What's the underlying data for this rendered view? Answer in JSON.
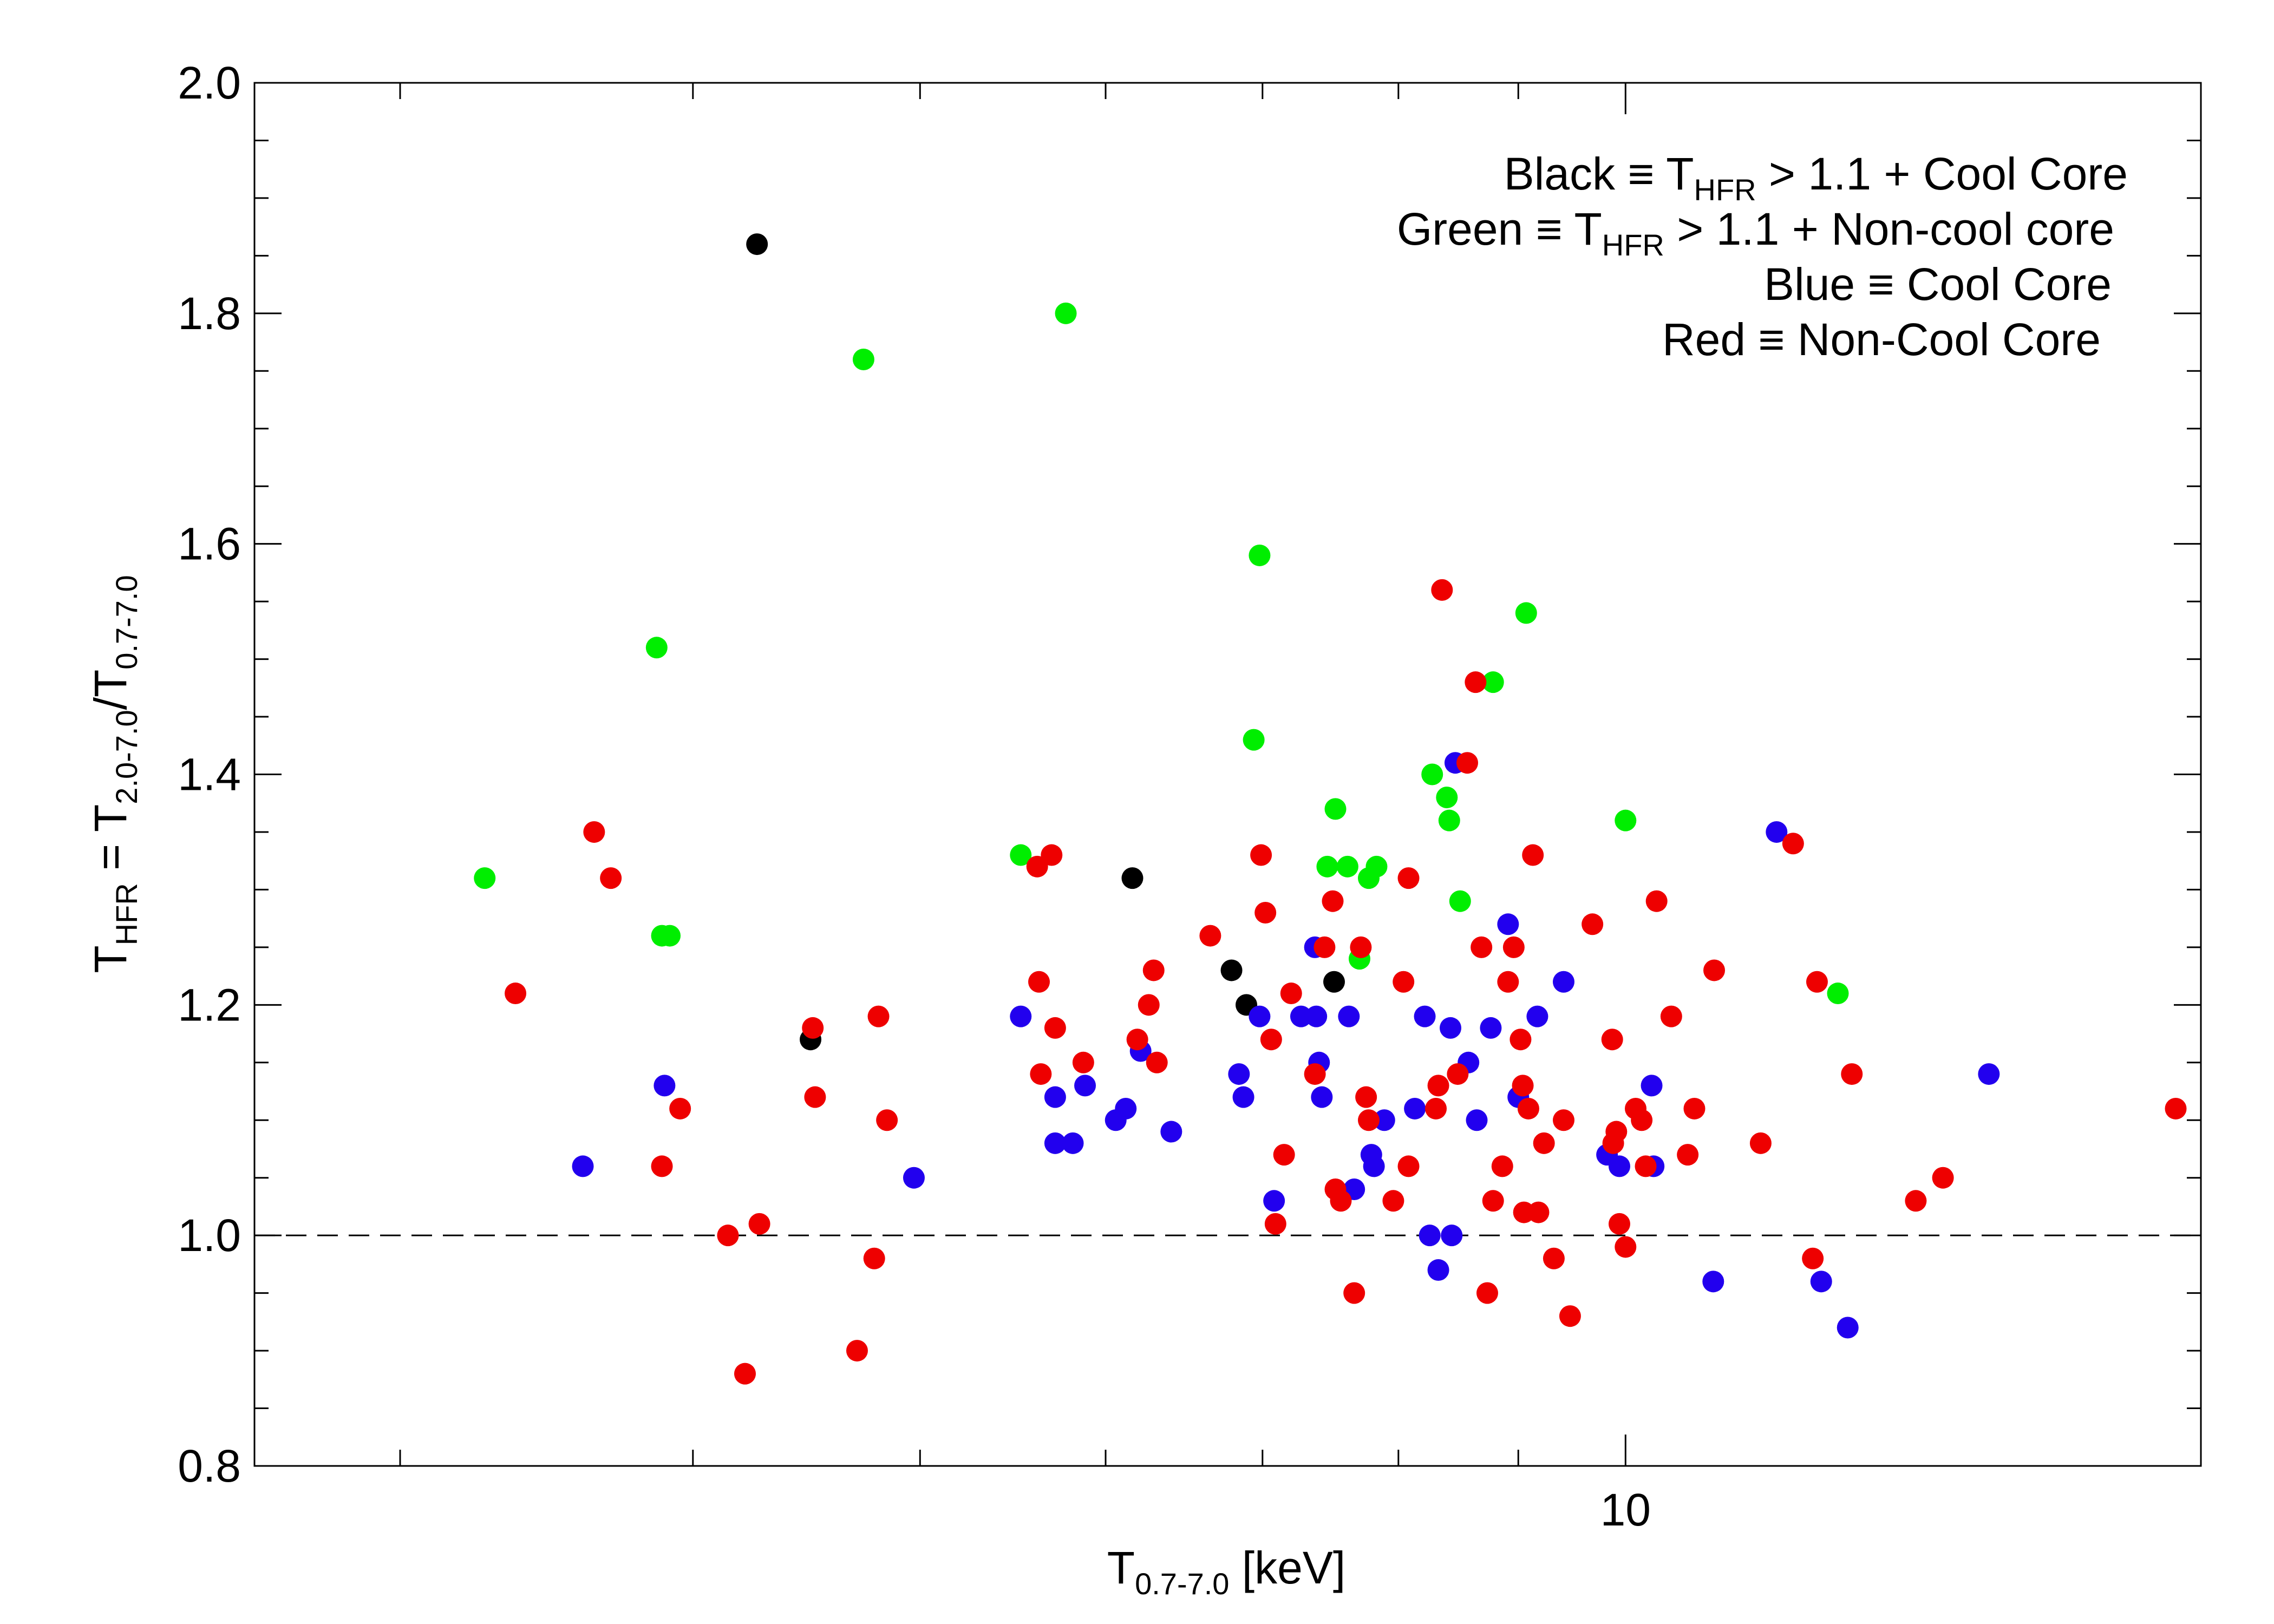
{
  "chart_data": {
    "type": "scatter",
    "xlabel": {
      "main": "T",
      "sub": "0.7-7.0",
      "rest": " [keV]"
    },
    "ylabel": {
      "p1": "T",
      "s1": "HFR",
      "p2": " = T",
      "s2": "2.0-7.0",
      "p3": "/T",
      "s3": "0.7-7.0"
    },
    "x_scale": "log",
    "xlim": [
      2.6,
      17.6
    ],
    "ylim": [
      0.8,
      2.0
    ],
    "x_tick_labels": [
      {
        "value": 10,
        "label": "10"
      }
    ],
    "y_tick_labels": [
      {
        "value": 0.8,
        "label": "0.8"
      },
      {
        "value": 1.0,
        "label": "1.0"
      },
      {
        "value": 1.2,
        "label": "1.2"
      },
      {
        "value": 1.4,
        "label": "1.4"
      },
      {
        "value": 1.6,
        "label": "1.6"
      },
      {
        "value": 1.8,
        "label": "1.8"
      },
      {
        "value": 2.0,
        "label": "2.0"
      }
    ],
    "reference_line": {
      "y": 1.0,
      "style": "dashed"
    },
    "legend": [
      {
        "pre": "Black ≡ T",
        "sub": "HFR",
        "post": " > 1.1 + Cool Core"
      },
      {
        "pre": "Green ≡ T",
        "sub": "HFR",
        "post": " > 1.1 + Non-cool core"
      },
      {
        "pre": "Blue ≡ Cool Core",
        "sub": "",
        "post": ""
      },
      {
        "pre": "Red ≡ Non-Cool Core",
        "sub": "",
        "post": ""
      }
    ],
    "legend_position": "top-right",
    "colors": {
      "black": "#000000",
      "green": "#00ee00",
      "blue": "#2200ee",
      "red": "#ee0000"
    },
    "series": [
      {
        "color": "black",
        "points": [
          [
            4.26,
            1.86
          ],
          [
            6.16,
            1.31
          ],
          [
            4.49,
            1.17
          ],
          [
            6.79,
            1.23
          ],
          [
            6.89,
            1.2
          ],
          [
            7.51,
            1.22
          ]
        ]
      },
      {
        "color": "green",
        "points": [
          [
            3.26,
            1.31
          ],
          [
            3.86,
            1.51
          ],
          [
            3.88,
            1.26
          ],
          [
            3.91,
            1.26
          ],
          [
            4.73,
            1.76
          ],
          [
            5.52,
            1.33
          ],
          [
            5.77,
            1.8
          ],
          [
            6.98,
            1.59
          ],
          [
            6.94,
            1.43
          ],
          [
            7.46,
            1.32
          ],
          [
            7.52,
            1.37
          ],
          [
            7.61,
            1.32
          ],
          [
            7.7,
            1.24
          ],
          [
            7.77,
            1.31
          ],
          [
            7.83,
            1.32
          ],
          [
            8.27,
            1.4
          ],
          [
            8.39,
            1.38
          ],
          [
            8.41,
            1.36
          ],
          [
            8.5,
            1.29
          ],
          [
            8.78,
            1.48
          ],
          [
            9.07,
            1.54
          ],
          [
            10.0,
            1.36
          ],
          [
            12.32,
            1.21
          ]
        ]
      },
      {
        "color": "blue",
        "points": [
          [
            3.89,
            1.13
          ],
          [
            3.59,
            1.06
          ],
          [
            4.97,
            1.05
          ],
          [
            5.52,
            1.19
          ],
          [
            5.71,
            1.12
          ],
          [
            5.81,
            1.08
          ],
          [
            5.71,
            1.08
          ],
          [
            5.88,
            1.13
          ],
          [
            6.06,
            1.1
          ],
          [
            6.12,
            1.11
          ],
          [
            6.21,
            1.16
          ],
          [
            6.4,
            1.09
          ],
          [
            6.84,
            1.14
          ],
          [
            6.87,
            1.12
          ],
          [
            6.98,
            1.19
          ],
          [
            7.08,
            1.03
          ],
          [
            7.27,
            1.19
          ],
          [
            7.37,
            1.25
          ],
          [
            7.38,
            1.19
          ],
          [
            7.4,
            1.15
          ],
          [
            7.42,
            1.12
          ],
          [
            7.62,
            1.19
          ],
          [
            7.66,
            1.04
          ],
          [
            7.79,
            1.07
          ],
          [
            7.81,
            1.06
          ],
          [
            7.89,
            1.1
          ],
          [
            8.13,
            1.11
          ],
          [
            8.21,
            1.19
          ],
          [
            8.25,
            1.0
          ],
          [
            8.32,
            0.97
          ],
          [
            8.42,
            1.18
          ],
          [
            8.43,
            1.0
          ],
          [
            8.46,
            1.41
          ],
          [
            8.57,
            1.15
          ],
          [
            8.64,
            1.1
          ],
          [
            8.76,
            1.18
          ],
          [
            8.91,
            1.27
          ],
          [
            9.0,
            1.12
          ],
          [
            9.17,
            1.19
          ],
          [
            9.41,
            1.22
          ],
          [
            9.82,
            1.07
          ],
          [
            9.94,
            1.06
          ],
          [
            10.26,
            1.13
          ],
          [
            10.28,
            1.06
          ],
          [
            10.9,
            0.96
          ],
          [
            11.6,
            1.35
          ],
          [
            12.12,
            0.96
          ],
          [
            12.44,
            0.92
          ],
          [
            14.29,
            1.14
          ]
        ]
      },
      {
        "color": "red",
        "points": [
          [
            3.36,
            1.21
          ],
          [
            3.63,
            1.35
          ],
          [
            3.69,
            1.31
          ],
          [
            3.88,
            1.06
          ],
          [
            3.95,
            1.11
          ],
          [
            4.14,
            1.0
          ],
          [
            4.21,
            0.88
          ],
          [
            4.27,
            1.01
          ],
          [
            4.5,
            1.18
          ],
          [
            4.51,
            1.12
          ],
          [
            4.7,
            0.9
          ],
          [
            4.78,
            0.98
          ],
          [
            4.8,
            1.19
          ],
          [
            4.84,
            1.1
          ],
          [
            5.61,
            1.32
          ],
          [
            5.62,
            1.22
          ],
          [
            5.63,
            1.14
          ],
          [
            5.69,
            1.33
          ],
          [
            5.71,
            1.18
          ],
          [
            5.87,
            1.15
          ],
          [
            6.19,
            1.17
          ],
          [
            6.26,
            1.2
          ],
          [
            6.29,
            1.23
          ],
          [
            6.31,
            1.15
          ],
          [
            6.65,
            1.26
          ],
          [
            6.99,
            1.33
          ],
          [
            7.02,
            1.28
          ],
          [
            7.06,
            1.17
          ],
          [
            7.09,
            1.01
          ],
          [
            7.15,
            1.07
          ],
          [
            7.2,
            1.21
          ],
          [
            7.37,
            1.14
          ],
          [
            7.44,
            1.25
          ],
          [
            7.5,
            1.29
          ],
          [
            7.52,
            1.04
          ],
          [
            7.56,
            1.03
          ],
          [
            7.66,
            0.95
          ],
          [
            7.71,
            1.25
          ],
          [
            7.75,
            1.12
          ],
          [
            7.77,
            1.1
          ],
          [
            7.96,
            1.03
          ],
          [
            8.04,
            1.22
          ],
          [
            8.08,
            1.06
          ],
          [
            8.08,
            1.31
          ],
          [
            8.3,
            1.11
          ],
          [
            8.32,
            1.13
          ],
          [
            8.35,
            1.56
          ],
          [
            8.48,
            1.14
          ],
          [
            8.56,
            1.41
          ],
          [
            8.63,
            1.48
          ],
          [
            8.68,
            1.25
          ],
          [
            8.73,
            0.95
          ],
          [
            8.78,
            1.03
          ],
          [
            8.86,
            1.06
          ],
          [
            8.91,
            1.22
          ],
          [
            8.96,
            1.25
          ],
          [
            9.02,
            1.17
          ],
          [
            9.04,
            1.13
          ],
          [
            9.05,
            1.02
          ],
          [
            9.09,
            1.11
          ],
          [
            9.13,
            1.33
          ],
          [
            9.18,
            1.02
          ],
          [
            9.23,
            1.08
          ],
          [
            9.32,
            0.98
          ],
          [
            9.41,
            1.1
          ],
          [
            9.47,
            0.93
          ],
          [
            9.68,
            1.27
          ],
          [
            9.87,
            1.17
          ],
          [
            9.88,
            1.08
          ],
          [
            9.91,
            1.09
          ],
          [
            9.94,
            1.01
          ],
          [
            10.0,
            0.99
          ],
          [
            10.1,
            1.11
          ],
          [
            10.16,
            1.1
          ],
          [
            10.2,
            1.06
          ],
          [
            10.31,
            1.29
          ],
          [
            10.46,
            1.19
          ],
          [
            10.63,
            1.07
          ],
          [
            10.7,
            1.11
          ],
          [
            10.91,
            1.23
          ],
          [
            11.42,
            1.08
          ],
          [
            11.79,
            1.34
          ],
          [
            12.02,
            0.98
          ],
          [
            12.07,
            1.22
          ],
          [
            12.49,
            1.14
          ],
          [
            13.3,
            1.03
          ],
          [
            13.66,
            1.05
          ],
          [
            17.17,
            1.11
          ]
        ]
      }
    ]
  }
}
